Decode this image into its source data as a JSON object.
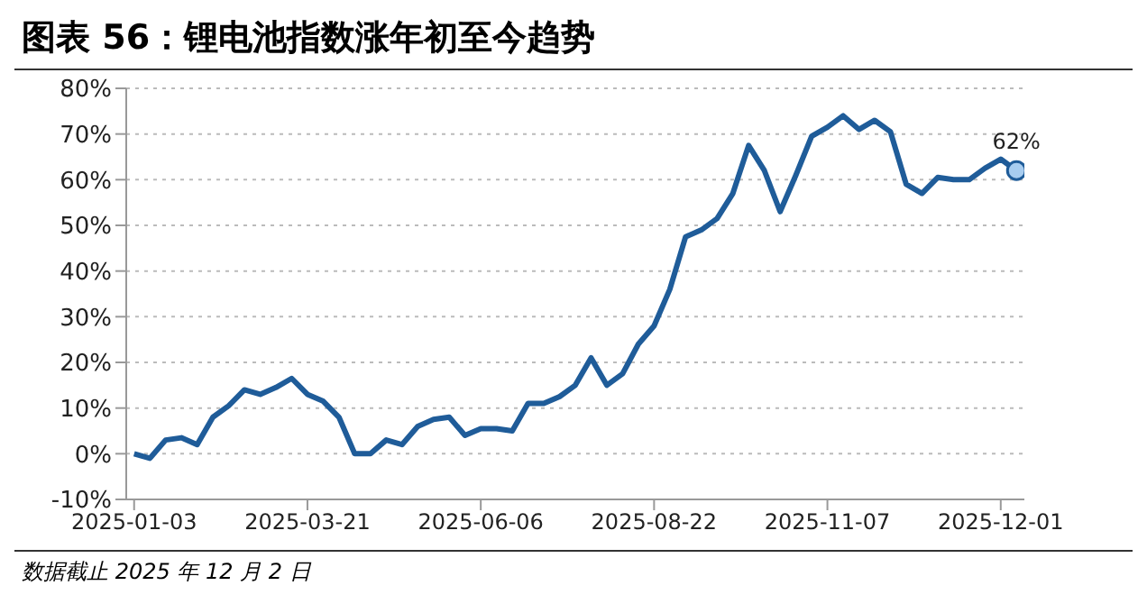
{
  "chart_data": {
    "type": "line",
    "title": "图表 56：锂电池指数涨年初至今趋势",
    "categories": [
      "2025-01-03",
      null,
      null,
      null,
      null,
      null,
      null,
      null,
      null,
      null,
      null,
      "2025-03-21",
      null,
      null,
      null,
      null,
      null,
      null,
      null,
      null,
      null,
      null,
      "2025-06-06",
      null,
      null,
      null,
      null,
      null,
      null,
      null,
      null,
      null,
      null,
      "2025-08-22",
      null,
      null,
      null,
      null,
      null,
      null,
      null,
      null,
      null,
      null,
      "2025-11-07",
      null,
      null,
      null,
      null,
      null,
      null,
      null,
      null,
      null,
      null,
      "2025-12-01",
      null
    ],
    "series": [
      {
        "color": "#1f5c99",
        "values": [
          0,
          -1,
          3,
          3.5,
          2,
          8,
          10.5,
          14,
          13,
          14.5,
          16.5,
          13,
          11.5,
          8,
          0,
          0,
          3,
          2,
          6,
          7.5,
          8,
          4,
          5.5,
          5.5,
          5,
          11,
          11,
          12.5,
          15,
          21,
          15,
          17.5,
          24,
          28,
          36,
          47.5,
          49,
          51.5,
          57,
          67.5,
          62,
          53,
          61,
          69.5,
          71.5,
          74,
          71,
          73,
          70.5,
          59,
          57,
          60.5,
          60,
          60,
          62.5,
          64.5,
          62
        ],
        "value_labels": [
          null,
          null,
          null,
          null,
          null,
          null,
          null,
          null,
          null,
          null,
          null,
          null,
          null,
          null,
          null,
          null,
          null,
          null,
          null,
          null,
          null,
          null,
          null,
          null,
          null,
          null,
          null,
          null,
          null,
          null,
          null,
          null,
          null,
          null,
          null,
          null,
          null,
          null,
          null,
          null,
          null,
          null,
          null,
          null,
          null,
          null,
          null,
          null,
          null,
          null,
          null,
          null,
          null,
          null,
          null,
          null,
          "62%"
        ]
      }
    ],
    "ylim": [
      -10,
      80
    ],
    "yticks": [
      {
        "value": -10,
        "label": "-10%"
      },
      {
        "value": 0,
        "label": "0%"
      },
      {
        "value": 10,
        "label": "10%"
      },
      {
        "value": 20,
        "label": "20%"
      },
      {
        "value": 30,
        "label": "30%"
      },
      {
        "value": 40,
        "label": "40%"
      },
      {
        "value": 50,
        "label": "50%"
      },
      {
        "value": 60,
        "label": "60%"
      },
      {
        "value": 70,
        "label": "70%"
      },
      {
        "value": 80,
        "label": "80%"
      }
    ],
    "grid": "y",
    "legend": false,
    "line_style": "solid",
    "annotations": [
      "数据截止 2025 年 12 月 2 日"
    ]
  }
}
